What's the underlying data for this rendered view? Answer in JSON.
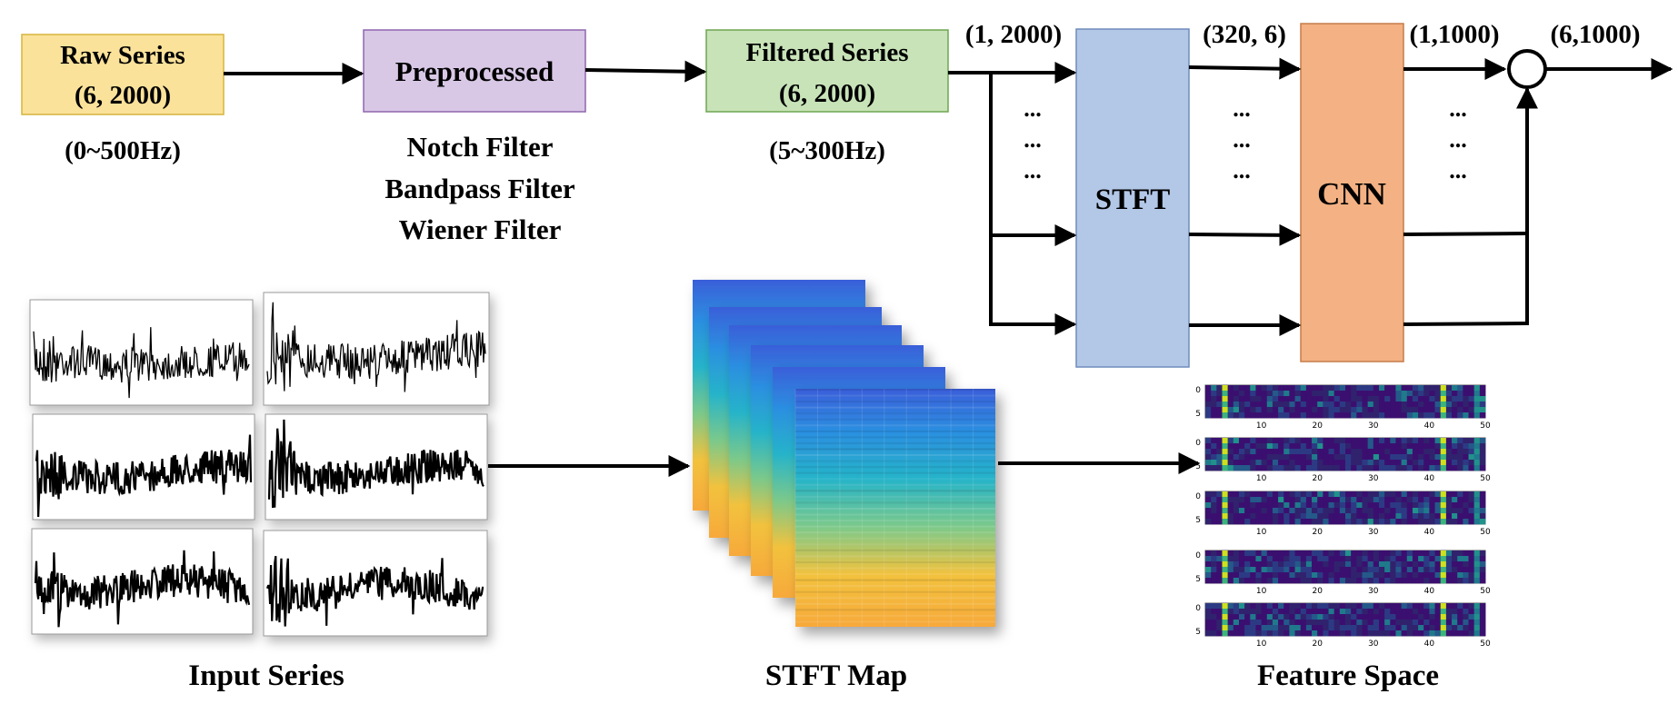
{
  "colors": {
    "raw": "#fbe29a",
    "raw_border": "#d6b43c",
    "pre": "#d8c8e6",
    "pre_border": "#8f66ad",
    "filtered": "#c8e3b8",
    "filtered_border": "#6fa650",
    "stft": "#b3c7e7",
    "stft_border": "#6f8cba",
    "cnn": "#f4b183",
    "cnn_border": "#c57c49",
    "arrow": "#000000"
  },
  "top": {
    "raw": {
      "line1": "Raw Series",
      "line2": "(6, 2000)",
      "range": "(0~500Hz)"
    },
    "preprocessed": {
      "label": "Preprocessed",
      "filters": [
        "Notch Filter",
        "Bandpass Filter",
        "Wiener Filter"
      ]
    },
    "filtered": {
      "line1": "Filtered Series",
      "line2": "(6, 2000)",
      "range": "(5~300Hz)"
    },
    "dims": {
      "input": "(1, 2000)",
      "stft_out": "(320, 6)",
      "cnn_out": "(1,1000)",
      "final": "(6,1000)"
    },
    "stft": "STFT",
    "cnn": "CNN",
    "ellipsis": "..."
  },
  "bottom": {
    "input_series_label": "Input Series",
    "stft_map_label": "STFT Map",
    "feature_space_label": "Feature Space",
    "feature_yticks": [
      "0",
      "5"
    ],
    "feature_xticks": [
      "10",
      "20",
      "30",
      "40",
      "50"
    ]
  }
}
